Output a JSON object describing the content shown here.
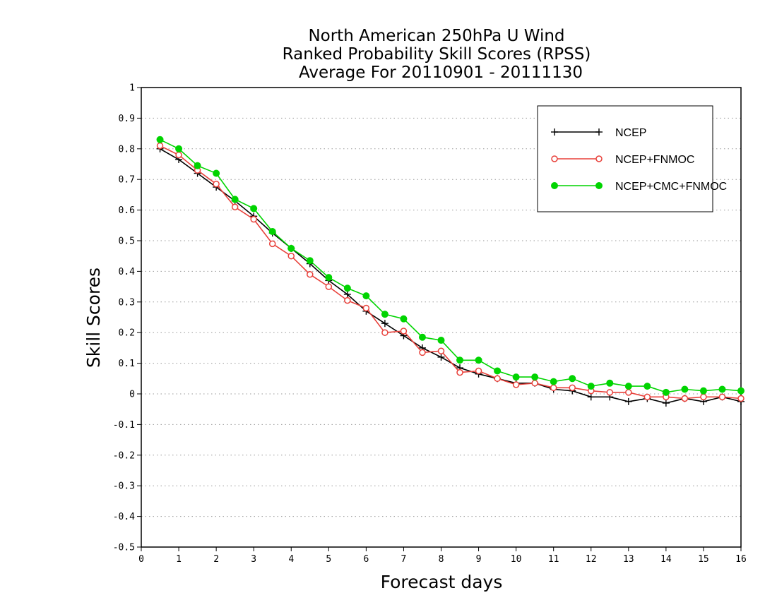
{
  "chart_data": {
    "type": "line",
    "title": [
      "North American 250hPa U Wind",
      "Ranked Probability Skill Scores (RPSS)",
      "Average For 20110901 - 20111130"
    ],
    "xlabel": "Forecast days",
    "ylabel": "Skill Scores",
    "xlim": [
      0,
      16
    ],
    "ylim": [
      -0.5,
      1
    ],
    "xticks": [
      0,
      1,
      2,
      3,
      4,
      5,
      6,
      7,
      8,
      9,
      10,
      11,
      12,
      13,
      14,
      15,
      16
    ],
    "yticks": [
      -0.5,
      -0.4,
      -0.3,
      -0.2,
      -0.1,
      0,
      0.1,
      0.2,
      0.3,
      0.4,
      0.5,
      0.6,
      0.7,
      0.8,
      0.9,
      1
    ],
    "ytick_labels": [
      "-0.5",
      "-0.4",
      "-0.3",
      "-0.2",
      "-0.1",
      "0",
      "0.1",
      "0.2",
      "0.3",
      "0.4",
      "0.5",
      "0.6",
      "0.7",
      "0.8",
      "0.9",
      "1"
    ],
    "grid": "horizontal dotted",
    "legend_position": "top-right",
    "x": [
      0.5,
      1,
      1.5,
      2,
      2.5,
      3,
      3.5,
      4,
      4.5,
      5,
      5.5,
      6,
      6.5,
      7,
      7.5,
      8,
      8.5,
      9,
      9.5,
      10,
      10.5,
      11,
      11.5,
      12,
      12.5,
      13,
      13.5,
      14,
      14.5,
      15,
      15.5,
      16
    ],
    "series": [
      {
        "name": "NCEP",
        "color": "#000000",
        "marker": "plus",
        "values": [
          0.8,
          0.765,
          0.72,
          0.675,
          0.63,
          0.58,
          0.525,
          0.475,
          0.425,
          0.37,
          0.325,
          0.27,
          0.23,
          0.19,
          0.15,
          0.12,
          0.085,
          0.065,
          0.05,
          0.035,
          0.035,
          0.015,
          0.01,
          -0.01,
          -0.01,
          -0.025,
          -0.015,
          -0.03,
          -0.015,
          -0.025,
          -0.01,
          -0.025
        ]
      },
      {
        "name": "NCEP+FNMOC",
        "color": "#e8403a",
        "marker": "open-circle",
        "values": [
          0.81,
          0.78,
          0.73,
          0.685,
          0.61,
          0.57,
          0.49,
          0.45,
          0.39,
          0.35,
          0.305,
          0.28,
          0.2,
          0.205,
          0.135,
          0.14,
          0.07,
          0.075,
          0.05,
          0.03,
          0.035,
          0.02,
          0.02,
          0.01,
          0.005,
          0.005,
          -0.01,
          -0.01,
          -0.015,
          -0.01,
          -0.01,
          -0.015
        ]
      },
      {
        "name": "NCEP+CMC+FNMOC",
        "color": "#00d400",
        "marker": "filled-circle",
        "values": [
          0.83,
          0.8,
          0.745,
          0.72,
          0.635,
          0.605,
          0.53,
          0.475,
          0.435,
          0.38,
          0.345,
          0.32,
          0.26,
          0.245,
          0.185,
          0.175,
          0.11,
          0.11,
          0.075,
          0.055,
          0.055,
          0.04,
          0.05,
          0.025,
          0.035,
          0.025,
          0.025,
          0.005,
          0.015,
          0.01,
          0.015,
          0.01
        ]
      }
    ]
  }
}
